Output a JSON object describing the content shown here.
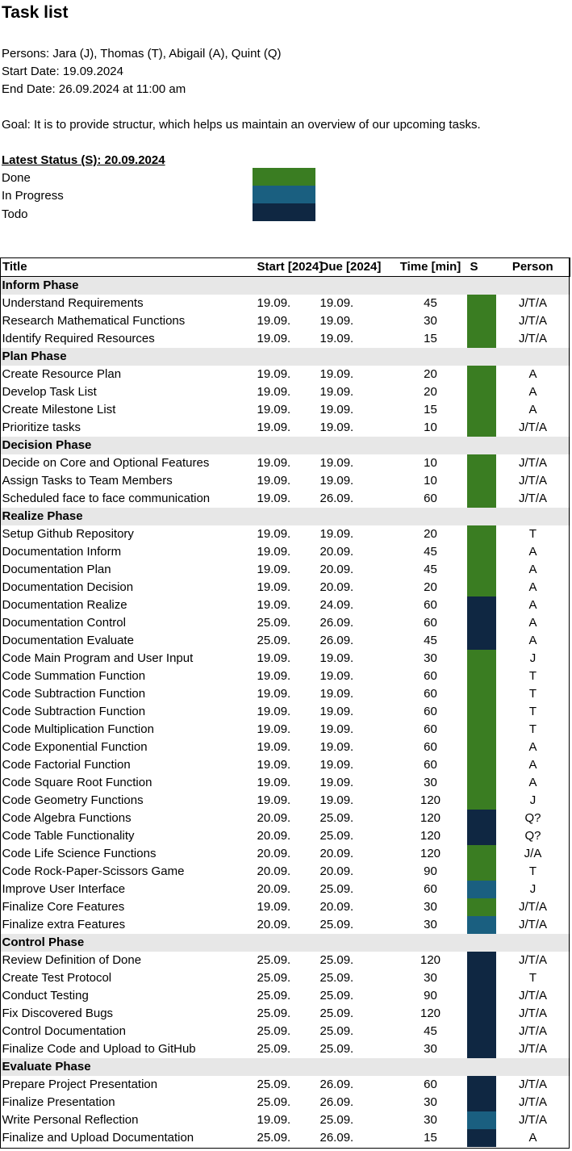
{
  "title": "Task list",
  "persons": "Persons: Jara (J), Thomas (T), Abigail (A), Quint (Q)",
  "start_date": "Start Date: 19.09.2024",
  "end_date": "End Date: 26.09.2024 at 11:00 am",
  "goal": "Goal: It is to provide structur, which helps us maintain an overview of our upcoming tasks.",
  "status": {
    "heading": "Latest Status (S): 20.09.2024",
    "colors": {
      "done": "#3a7d22",
      "in_progress": "#1a5f80",
      "todo": "#0f2742"
    },
    "legend": [
      "Done",
      "In Progress",
      "Todo"
    ]
  },
  "table": {
    "headers": [
      "Title",
      "Start [2024]",
      "Due [2024]",
      "Time [min]",
      "S",
      "Person"
    ],
    "sections": [
      {
        "phase": "Inform Phase",
        "rows": [
          {
            "title": "Understand Requirements",
            "start": "19.09.",
            "due": "19.09.",
            "time": "45",
            "s": "done",
            "person": "J/T/A"
          },
          {
            "title": "Research Mathematical Functions",
            "start": "19.09.",
            "due": "19.09.",
            "time": "30",
            "s": "done",
            "person": "J/T/A"
          },
          {
            "title": "Identify Required Resources",
            "start": "19.09.",
            "due": "19.09.",
            "time": "15",
            "s": "done",
            "person": "J/T/A"
          }
        ]
      },
      {
        "phase": "Plan Phase",
        "rows": [
          {
            "title": "Create Resource Plan",
            "start": "19.09.",
            "due": "19.09.",
            "time": "20",
            "s": "done",
            "person": "A"
          },
          {
            "title": "Develop Task List",
            "start": "19.09.",
            "due": "19.09.",
            "time": "20",
            "s": "done",
            "person": "A"
          },
          {
            "title": "Create Milestone List",
            "start": "19.09.",
            "due": "19.09.",
            "time": "15",
            "s": "done",
            "person": "A"
          },
          {
            "title": "Prioritize tasks",
            "start": "19.09.",
            "due": "19.09.",
            "time": "10",
            "s": "done",
            "person": "J/T/A"
          }
        ]
      },
      {
        "phase": "Decision Phase",
        "rows": [
          {
            "title": "Decide on Core and Optional Features",
            "start": "19.09.",
            "due": "19.09.",
            "time": "10",
            "s": "done",
            "person": "J/T/A"
          },
          {
            "title": "Assign Tasks to Team Members",
            "start": "19.09.",
            "due": "19.09.",
            "time": "10",
            "s": "done",
            "person": "J/T/A"
          },
          {
            "title": "Scheduled face to face communication",
            "start": "19.09.",
            "due": "26.09.",
            "time": "60",
            "s": "done",
            "person": "J/T/A"
          }
        ]
      },
      {
        "phase": "Realize Phase",
        "rows": [
          {
            "title": "Setup Github Repository",
            "start": "19.09.",
            "due": "19.09.",
            "time": "20",
            "s": "done",
            "person": "T"
          },
          {
            "title": "Documentation Inform",
            "start": "19.09.",
            "due": "20.09.",
            "time": "45",
            "s": "done",
            "person": "A"
          },
          {
            "title": "Documentation Plan",
            "start": "19.09.",
            "due": "20.09.",
            "time": "45",
            "s": "done",
            "person": "A"
          },
          {
            "title": "Documentation Decision",
            "start": "19.09.",
            "due": "20.09.",
            "time": "20",
            "s": "done",
            "person": "A"
          },
          {
            "title": "Documentation Realize",
            "start": "19.09.",
            "due": "24.09.",
            "time": "60",
            "s": "todo",
            "person": "A"
          },
          {
            "title": "Documentation Control",
            "start": "25.09.",
            "due": "26.09.",
            "time": "60",
            "s": "todo",
            "person": "A"
          },
          {
            "title": "Documentation Evaluate",
            "start": "25.09.",
            "due": "26.09.",
            "time": "45",
            "s": "todo",
            "person": "A"
          },
          {
            "title": "Code Main Program and User Input",
            "start": "19.09.",
            "due": "19.09.",
            "time": "30",
            "s": "done",
            "person": "J"
          },
          {
            "title": "Code Summation Function",
            "start": "19.09.",
            "due": "19.09.",
            "time": "60",
            "s": "done",
            "person": "T"
          },
          {
            "title": "Code Subtraction Function",
            "start": "19.09.",
            "due": "19.09.",
            "time": "60",
            "s": "done",
            "person": "T"
          },
          {
            "title": "Code Subtraction Function",
            "start": "19.09.",
            "due": "19.09.",
            "time": "60",
            "s": "done",
            "person": "T"
          },
          {
            "title": "Code Multiplication Function",
            "start": "19.09.",
            "due": "19.09.",
            "time": "60",
            "s": "done",
            "person": "T"
          },
          {
            "title": "Code Exponential Function",
            "start": "19.09.",
            "due": "19.09.",
            "time": "60",
            "s": "done",
            "person": "A"
          },
          {
            "title": "Code Factorial Function",
            "start": "19.09.",
            "due": "19.09.",
            "time": "60",
            "s": "done",
            "person": "A"
          },
          {
            "title": "Code Square Root Function",
            "start": "19.09.",
            "due": "19.09.",
            "time": "30",
            "s": "done",
            "person": "A"
          },
          {
            "title": "Code Geometry Functions",
            "start": "19.09.",
            "due": "19.09.",
            "time": "120",
            "s": "done",
            "person": "J"
          },
          {
            "title": "Code Algebra Functions",
            "start": "20.09.",
            "due": "25.09.",
            "time": "120",
            "s": "todo",
            "person": "Q?"
          },
          {
            "title": "Code Table Functionality",
            "start": "20.09.",
            "due": "25.09.",
            "time": "120",
            "s": "todo",
            "person": "Q?"
          },
          {
            "title": "Code Life Science Functions",
            "start": "20.09.",
            "due": "20.09.",
            "time": "120",
            "s": "done",
            "person": "J/A"
          },
          {
            "title": "Code Rock-Paper-Scissors Game",
            "start": "20.09.",
            "due": "20.09.",
            "time": "90",
            "s": "done",
            "person": "T"
          },
          {
            "title": "Improve User Interface",
            "start": "20.09.",
            "due": "25.09.",
            "time": "60",
            "s": "in_progress",
            "person": "J"
          },
          {
            "title": "Finalize Core Features",
            "start": "19.09.",
            "due": "20.09.",
            "time": "30",
            "s": "done",
            "person": "J/T/A"
          },
          {
            "title": "Finalize extra Features",
            "start": "20.09.",
            "due": "25.09.",
            "time": "30",
            "s": "in_progress",
            "person": "J/T/A"
          }
        ]
      },
      {
        "phase": "Control Phase",
        "rows": [
          {
            "title": "Review Definition of Done",
            "start": "25.09.",
            "due": "25.09.",
            "time": "120",
            "s": "todo",
            "person": "J/T/A"
          },
          {
            "title": "Create Test Protocol",
            "start": "25.09.",
            "due": "25.09.",
            "time": "30",
            "s": "todo",
            "person": "T"
          },
          {
            "title": "Conduct Testing",
            "start": "25.09.",
            "due": "25.09.",
            "time": "90",
            "s": "todo",
            "person": "J/T/A"
          },
          {
            "title": "Fix Discovered Bugs",
            "start": "25.09.",
            "due": "25.09.",
            "time": "120",
            "s": "todo",
            "person": "J/T/A"
          },
          {
            "title": "Control Documentation",
            "start": "25.09.",
            "due": "25.09.",
            "time": "45",
            "s": "todo",
            "person": "J/T/A"
          },
          {
            "title": "Finalize Code and Upload to GitHub",
            "start": "25.09.",
            "due": "25.09.",
            "time": "30",
            "s": "todo",
            "person": "J/T/A"
          }
        ]
      },
      {
        "phase": "Evaluate Phase",
        "rows": [
          {
            "title": "Prepare Project Presentation",
            "start": "25.09.",
            "due": "26.09.",
            "time": "60",
            "s": "todo",
            "person": "J/T/A"
          },
          {
            "title": "Finalize Presentation",
            "start": "25.09.",
            "due": "26.09.",
            "time": "30",
            "s": "todo",
            "person": "J/T/A"
          },
          {
            "title": "Write Personal Reflection",
            "start": "19.09.",
            "due": "25.09.",
            "time": "30",
            "s": "in_progress",
            "person": "J/T/A"
          },
          {
            "title": "Finalize and Upload Documentation",
            "start": "25.09.",
            "due": "26.09.",
            "time": "15",
            "s": "todo",
            "person": "A"
          }
        ]
      }
    ]
  }
}
